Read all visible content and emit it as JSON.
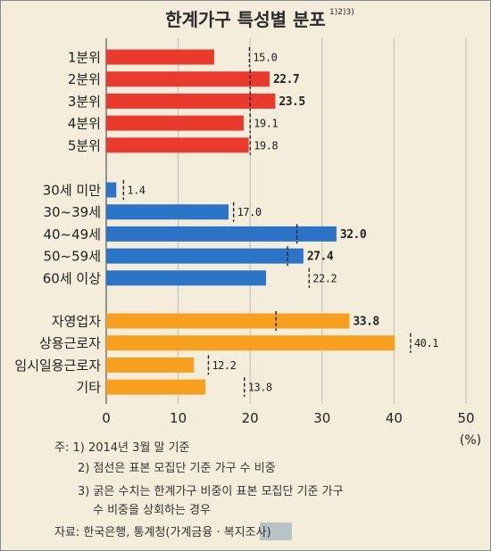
{
  "chart_data": {
    "type": "bar",
    "orientation": "horizontal",
    "title": "한계가구 특성별 분포",
    "title_sup": "1)2)3)",
    "xlim": [
      0,
      50
    ],
    "xticks": [
      0,
      10,
      20,
      30,
      40,
      50
    ],
    "unit": "(%)",
    "groups": [
      {
        "color": "#ea3a2e",
        "items": [
          {
            "label": "1분위",
            "value": 15.0,
            "value_label": "15.0",
            "bold": false,
            "dashed": 19.9
          },
          {
            "label": "2분위",
            "value": 22.7,
            "value_label": "22.7",
            "bold": true,
            "dashed": 20.0
          },
          {
            "label": "3분위",
            "value": 23.5,
            "value_label": "23.5",
            "bold": true,
            "dashed": 20.0
          },
          {
            "label": "4분위",
            "value": 19.1,
            "value_label": "19.1",
            "bold": false,
            "dashed": 20.0
          },
          {
            "label": "5분위",
            "value": 19.8,
            "value_label": "19.8",
            "bold": false,
            "dashed": 20.0
          }
        ]
      },
      {
        "color": "#2c74c8",
        "items": [
          {
            "label": "30세 미만",
            "value": 1.4,
            "value_label": "1.4",
            "bold": false,
            "dashed": 2.4
          },
          {
            "label": "30~39세",
            "value": 17.0,
            "value_label": "17.0",
            "bold": false,
            "dashed": 17.7
          },
          {
            "label": "40~49세",
            "value": 32.0,
            "value_label": "32.0",
            "bold": true,
            "dashed": 26.5
          },
          {
            "label": "50~59세",
            "value": 27.4,
            "value_label": "27.4",
            "bold": true,
            "dashed": 25.2
          },
          {
            "label": "60세 이상",
            "value": 22.2,
            "value_label": "22.2",
            "bold": false,
            "dashed": 28.2
          }
        ]
      },
      {
        "color": "#f7a01f",
        "items": [
          {
            "label": "자영업자",
            "value": 33.8,
            "value_label": "33.8",
            "bold": true,
            "dashed": 23.6
          },
          {
            "label": "상용근로자",
            "value": 40.1,
            "value_label": "40.1",
            "bold": false,
            "dashed": 42.3
          },
          {
            "label": "임시일용근로자",
            "value": 12.2,
            "value_label": "12.2",
            "bold": false,
            "dashed": 14.2
          },
          {
            "label": "기타",
            "value": 13.8,
            "value_label": "13.8",
            "bold": false,
            "dashed": 19.2
          }
        ]
      }
    ]
  },
  "notes": [
    "주: 1) 2014년 3월 말 기준",
    "2) 점선은 표본 모집단 기준 가구 수 비중",
    "3) 굵은 수치는 한계가구 비중이 표본 모집단 기준 가구",
    "수 비중을 상회하는 경우",
    "자료: 한국은행, 통계청(가계금융 · 복지조사)"
  ]
}
